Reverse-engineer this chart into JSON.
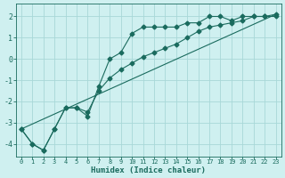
{
  "xlabel": "Humidex (Indice chaleur)",
  "ylabel": "",
  "bg_color": "#cff0f0",
  "grid_color": "#a8d8d8",
  "line_color": "#1a6b5e",
  "xlim": [
    -0.5,
    23.5
  ],
  "ylim": [
    -4.6,
    2.6
  ],
  "yticks": [
    -4,
    -3,
    -2,
    -1,
    0,
    1,
    2
  ],
  "xticks": [
    0,
    1,
    2,
    3,
    4,
    5,
    6,
    7,
    8,
    9,
    10,
    11,
    12,
    13,
    14,
    15,
    16,
    17,
    18,
    19,
    20,
    21,
    22,
    23
  ],
  "line1_x": [
    0,
    1,
    2,
    3,
    4,
    5,
    6,
    7,
    8,
    9,
    10,
    11,
    12,
    13,
    14,
    15,
    16,
    17,
    18,
    19,
    20,
    21,
    22,
    23
  ],
  "line1_y": [
    -3.3,
    -4.0,
    -4.3,
    -3.3,
    -2.3,
    -2.3,
    -2.7,
    -1.3,
    0.0,
    0.3,
    1.2,
    1.5,
    1.5,
    1.5,
    1.5,
    1.7,
    1.7,
    2.0,
    2.0,
    1.8,
    2.0,
    2.0,
    2.0,
    2.0
  ],
  "line2_x": [
    0,
    1,
    2,
    3,
    4,
    5,
    6,
    7,
    8,
    9,
    10,
    11,
    12,
    13,
    14,
    15,
    16,
    17,
    18,
    19,
    20,
    21,
    22,
    23
  ],
  "line2_y": [
    -3.3,
    -4.0,
    -4.3,
    -3.3,
    -2.3,
    -2.3,
    -2.5,
    -1.5,
    -0.9,
    -0.5,
    -0.2,
    0.1,
    0.3,
    0.5,
    0.7,
    1.0,
    1.3,
    1.5,
    1.6,
    1.7,
    1.8,
    2.0,
    2.0,
    2.1
  ],
  "line3_x": [
    0,
    23
  ],
  "line3_y": [
    -3.3,
    2.1
  ],
  "markersize": 2.5
}
